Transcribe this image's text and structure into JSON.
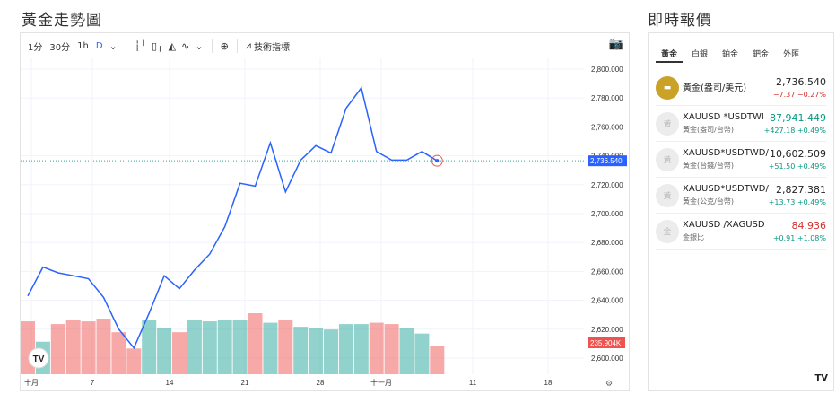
{
  "page": {
    "chart_title": "黃金走勢圖",
    "side_title": "即時報價"
  },
  "toolbar": {
    "intervals": [
      "1分",
      "30分",
      "1h",
      "D"
    ],
    "active_interval": "D",
    "tech_indicator": "技術指標"
  },
  "price_label": "2,736.540",
  "volume_label": "235.904K",
  "tv_mark": "TV",
  "chart_data": {
    "type": "line",
    "y_axis": [
      "2,800.000",
      "2,780.000",
      "2,760.000",
      "2,740.000",
      "2,720.000",
      "2,700.000",
      "2,680.000",
      "2,660.000",
      "2,640.000",
      "2,620.000",
      "2,600.000"
    ],
    "x_axis": [
      "十月",
      "7",
      "14",
      "21",
      "28",
      "十一月",
      "11",
      "18"
    ],
    "ylim": [
      2590,
      2810
    ],
    "prices": [
      2643,
      2663,
      2659,
      2657,
      2655,
      2642,
      2620,
      2607,
      2631,
      2657,
      2648,
      2661,
      2672,
      2691,
      2721,
      2719,
      2749,
      2715,
      2737,
      2747,
      2742,
      2773,
      2787,
      2743,
      2737,
      2737,
      2743,
      2736.54
    ],
    "volumes": [
      39,
      24,
      37,
      40,
      39,
      41,
      31,
      19,
      40,
      34,
      31,
      40,
      39,
      40,
      40,
      45,
      38,
      40,
      35,
      34,
      33,
      37,
      37,
      38,
      37,
      34,
      30,
      21
    ],
    "volume_up": [
      false,
      true,
      false,
      false,
      false,
      false,
      false,
      false,
      true,
      true,
      false,
      true,
      true,
      true,
      true,
      false,
      true,
      false,
      true,
      true,
      true,
      true,
      true,
      false,
      false,
      true,
      true,
      false
    ],
    "volume_max": 60,
    "last_price": 2736.54
  },
  "tabs": [
    "黃金",
    "白銀",
    "鉑金",
    "鈀金",
    "外匯"
  ],
  "quotes": [
    {
      "icon": "gold-bar-icon",
      "name1": "黃金(盎司/美元)",
      "name2": "",
      "price": "2,736.540",
      "change": "−7.37",
      "pct": "−0.27%",
      "dir": "down",
      "price_dir": ""
    },
    {
      "icon": "generic-icon",
      "name1": "XAUUSD *USDTWI",
      "name2": "黃金(盎司/台幣)",
      "price": "87,941.449",
      "change": "+427.18",
      "pct": "+0.49%",
      "dir": "up",
      "price_dir": "up"
    },
    {
      "icon": "generic-icon",
      "name1": "XAUUSD*USDTWD/",
      "name2": "黃金(台錢/台幣)",
      "price": "10,602.509",
      "change": "+51.50",
      "pct": "+0.49%",
      "dir": "up",
      "price_dir": ""
    },
    {
      "icon": "generic-icon",
      "name1": "XAUUSD*USDTWD/",
      "name2": "黃金(公克/台幣)",
      "price": "2,827.381",
      "change": "+13.73",
      "pct": "+0.49%",
      "dir": "up",
      "price_dir": ""
    },
    {
      "icon": "generic-icon",
      "name1": "XAUUSD /XAGUSD",
      "name2": "金銀比",
      "price": "84.936",
      "change": "+0.91",
      "pct": "+1.08%",
      "dir": "up",
      "price_dir": "down"
    }
  ]
}
